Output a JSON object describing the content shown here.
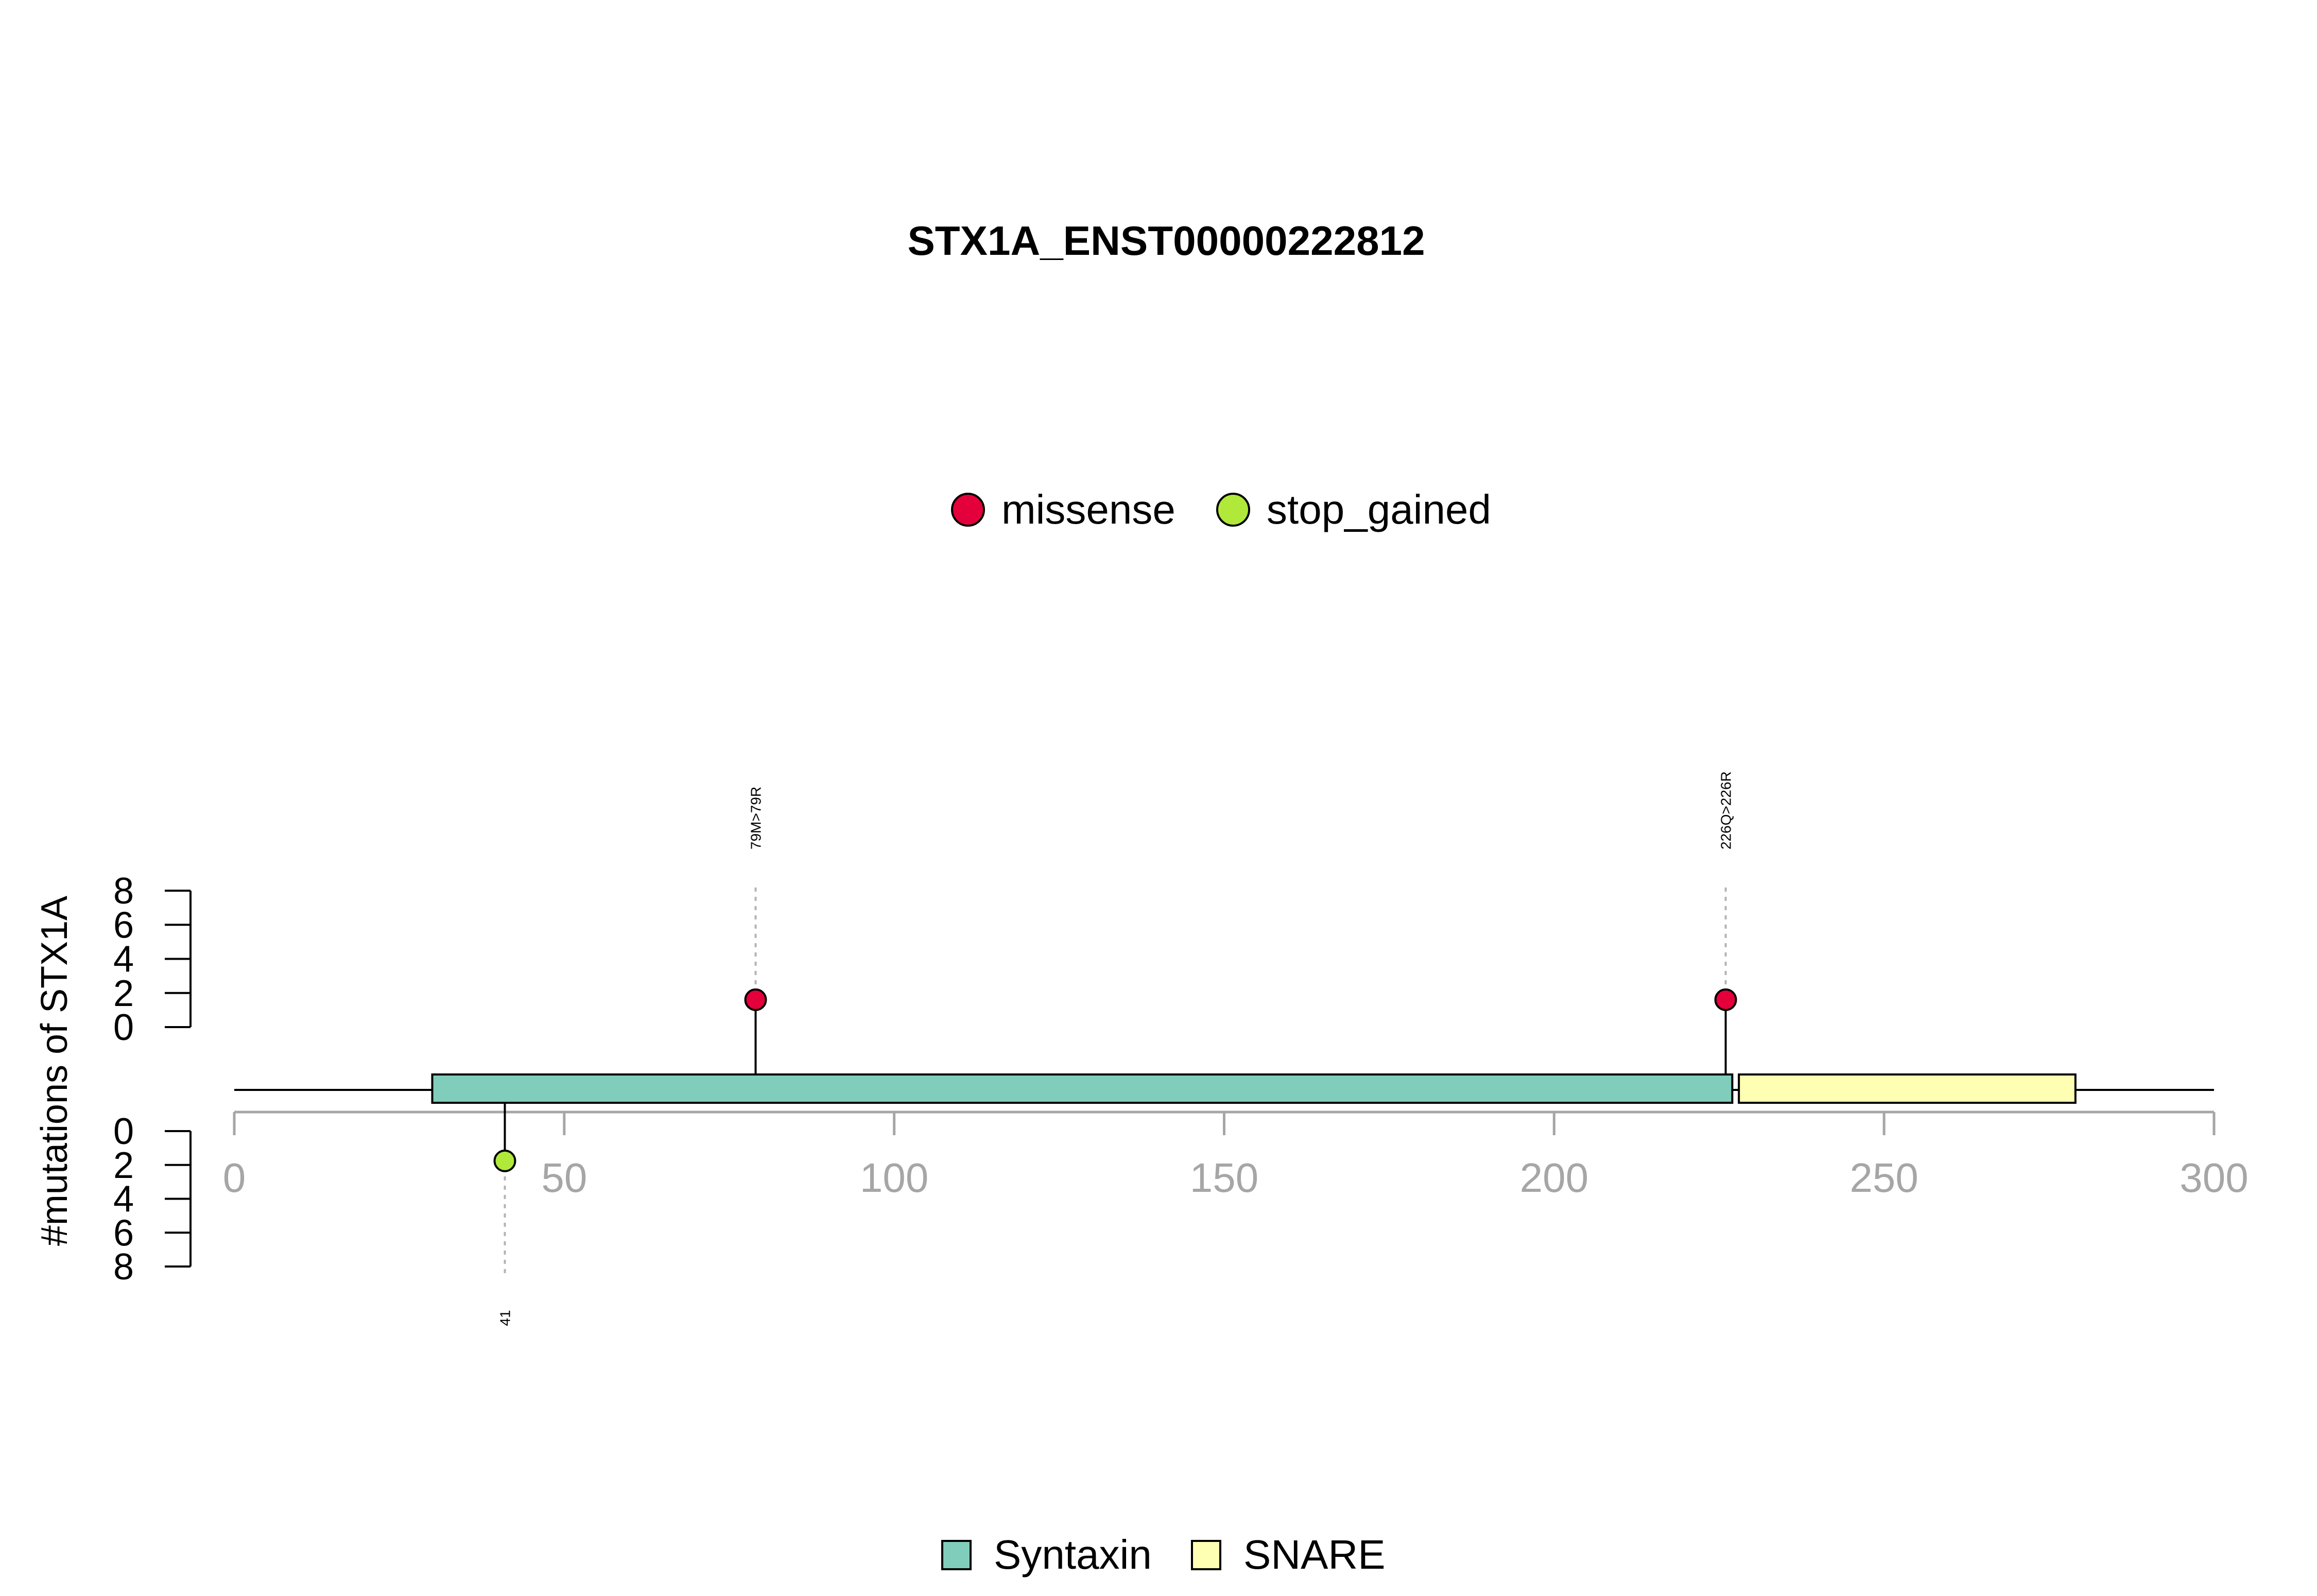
{
  "chart_data": {
    "type": "lollipop",
    "title": "STX1A_ENST00000222812",
    "ylabel": "#mutations of STX1A",
    "xlim": [
      0,
      300
    ],
    "x_ticks": [
      0,
      50,
      100,
      150,
      200,
      250,
      300
    ],
    "y_ticks_upper": [
      0,
      2,
      4,
      6,
      8
    ],
    "y_ticks_lower": [
      0,
      2,
      4,
      6,
      8
    ],
    "ylim": [
      0,
      8
    ],
    "protein_length": 300,
    "legend_top": [
      {
        "name": "missense",
        "color": "#e4003a"
      },
      {
        "name": "stop_gained",
        "color": "#b0e93a"
      }
    ],
    "legend_bottom": [
      {
        "name": "Syntaxin",
        "color": "#80cdbb"
      },
      {
        "name": "SNARE",
        "color": "#ffffb3"
      }
    ],
    "domains": [
      {
        "name": "Syntaxin",
        "start": 30,
        "end": 227,
        "color": "#80cdbb"
      },
      {
        "name": "SNARE",
        "start": 228,
        "end": 279,
        "color": "#ffffb3"
      }
    ],
    "mutations": [
      {
        "position": 79,
        "count": 1,
        "type": "missense",
        "side": "top",
        "label": "79M>79R",
        "color": "#e4003a"
      },
      {
        "position": 226,
        "count": 1,
        "type": "missense",
        "side": "top",
        "label": "226Q>226R",
        "color": "#e4003a"
      },
      {
        "position": 41,
        "count": 1,
        "type": "stop_gained",
        "side": "bottom",
        "label": "41",
        "color": "#b0e93a"
      }
    ]
  }
}
